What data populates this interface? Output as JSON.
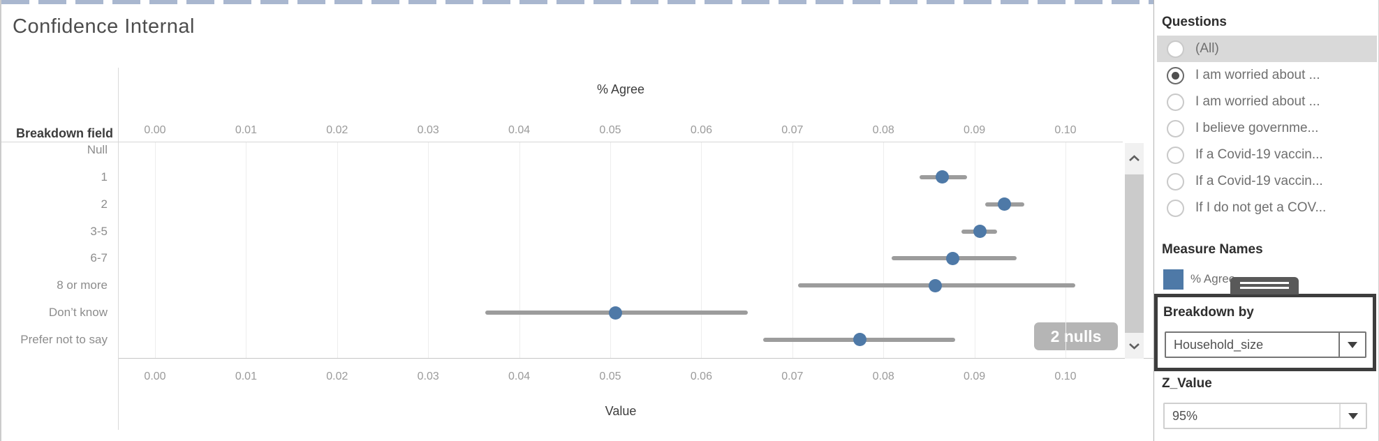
{
  "title": "Confidence Internal",
  "chart_data": {
    "type": "scatter",
    "subtype": "dot-with-confidence-interval",
    "row_header": "Breakdown field",
    "top_axis": {
      "label": "% Agree",
      "ticks": [
        "0.00",
        "0.01",
        "0.02",
        "0.03",
        "0.04",
        "0.05",
        "0.06",
        "0.07",
        "0.08",
        "0.09",
        "0.10"
      ]
    },
    "bottom_axis": {
      "label": "Value",
      "ticks": [
        "0.00",
        "0.01",
        "0.02",
        "0.03",
        "0.04",
        "0.05",
        "0.06",
        "0.07",
        "0.08",
        "0.09",
        "0.10"
      ]
    },
    "xlim": [
      0,
      0.106
    ],
    "grid": true,
    "categories": [
      "Null",
      "1",
      "2",
      "3-5",
      "6-7",
      "8 or more",
      "Don’t know",
      "Prefer not to say"
    ],
    "series": [
      {
        "name": "% Agree",
        "points": [
          {
            "category": "1",
            "value": 0.0865,
            "ci_low": 0.084,
            "ci_high": 0.0892
          },
          {
            "category": "2",
            "value": 0.0933,
            "ci_low": 0.0912,
            "ci_high": 0.0955
          },
          {
            "category": "3-5",
            "value": 0.0906,
            "ci_low": 0.0886,
            "ci_high": 0.0925
          },
          {
            "category": "6-7",
            "value": 0.0876,
            "ci_low": 0.0809,
            "ci_high": 0.0946
          },
          {
            "category": "8 or more",
            "value": 0.0857,
            "ci_low": 0.0706,
            "ci_high": 0.1011
          },
          {
            "category": "Don’t know",
            "value": 0.0506,
            "ci_low": 0.0363,
            "ci_high": 0.0651
          },
          {
            "category": "Prefer not to say",
            "value": 0.0774,
            "ci_low": 0.0668,
            "ci_high": 0.0879
          }
        ]
      }
    ],
    "null_indicator": "2 nulls",
    "colors": {
      "dot": "#4e79a7",
      "interval": "#9c9c9c",
      "null_badge": "#b5b5b5"
    }
  },
  "sidebar": {
    "questions": {
      "title": "Questions",
      "options": [
        {
          "label": "(All)",
          "selected": false,
          "highlighted": true
        },
        {
          "label": "I am worried about ...",
          "selected": true,
          "highlighted": false
        },
        {
          "label": "I am worried about ...",
          "selected": false,
          "highlighted": false
        },
        {
          "label": "I believe governme...",
          "selected": false,
          "highlighted": false
        },
        {
          "label": "If a Covid-19 vaccin...",
          "selected": false,
          "highlighted": false
        },
        {
          "label": "If a Covid-19 vaccin...",
          "selected": false,
          "highlighted": false
        },
        {
          "label": "If I do not get a COV...",
          "selected": false,
          "highlighted": false
        }
      ]
    },
    "measure_names": {
      "title": "Measure Names",
      "legend": [
        {
          "label": "% Agree",
          "color": "#4e79a7"
        }
      ]
    },
    "breakdown_by": {
      "title": "Breakdown by",
      "value": "Household_size"
    },
    "z_value": {
      "title": "Z_Value",
      "value": "95%"
    }
  },
  "decor": {
    "dashed_border_color": "#a9b7cf",
    "highlight_row_color": "#d9d9d9"
  }
}
